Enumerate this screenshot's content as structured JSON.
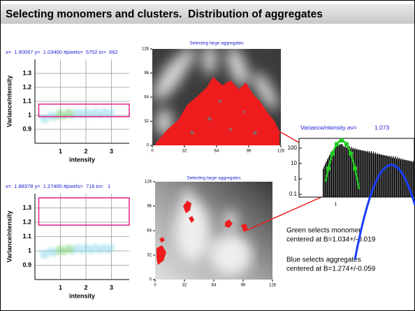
{
  "title": "Selecting monomers and clusters.  Distribution of aggregates",
  "plots": [
    {
      "header": "x=  1.90057 y=  1.03400 #pixels=  5702 in=  662",
      "ylabel": "Variance/ntensity",
      "xlabel": "intensity",
      "xlim": [
        0,
        3.7
      ],
      "ylim": [
        0.8,
        1.4
      ],
      "xticks": [
        1,
        2,
        3
      ],
      "yticks": [
        0.9,
        1,
        1.1,
        1.2,
        1.3
      ],
      "selection_box": {
        "xlim": [
          0.15,
          3.7
        ],
        "ylim": [
          0.99,
          1.08
        ]
      }
    },
    {
      "header": "x=  1.88378 y=  1.27400 #pixels=  716 in=   1",
      "ylabel": "Variance/ntensity",
      "xlabel": "intensity",
      "xlim": [
        0,
        3.7
      ],
      "ylim": [
        0.8,
        1.4
      ],
      "xticks": [
        1,
        2,
        3
      ],
      "yticks": [
        0.9,
        1,
        1.1,
        1.2,
        1.3
      ],
      "selection_box": {
        "xlim": [
          0.15,
          3.7
        ],
        "ylim": [
          1.18,
          1.37
        ]
      }
    }
  ],
  "images": [
    {
      "title": "Selecting large aggregates",
      "xlim": [
        0,
        128
      ],
      "ylim": [
        0,
        128
      ],
      "xticks": [
        0,
        32,
        64,
        96,
        128
      ],
      "yticks": [
        0,
        32,
        64,
        96,
        128
      ]
    },
    {
      "title": "Selecting large aggregates",
      "xlim": [
        0,
        128
      ],
      "ylim": [
        0,
        128
      ],
      "xticks": [
        0,
        32,
        64,
        96,
        128
      ],
      "yticks": [
        0,
        32,
        64,
        96,
        128
      ]
    }
  ],
  "histogram": {
    "title": "Variance/ntensity av=",
    "average": 1.073,
    "log_y": true,
    "xlim": [
      0.82,
      1.39
    ],
    "ylim": [
      0.066,
      430
    ],
    "xticks": [
      1
    ],
    "yticks": [
      0.1,
      1,
      10,
      100
    ]
  },
  "notes": [
    "Green selects monomer",
    "centered at B=1.034+/-0.019",
    "Blue selects aggregates",
    "centered at B=1.274+/-0.059"
  ]
}
